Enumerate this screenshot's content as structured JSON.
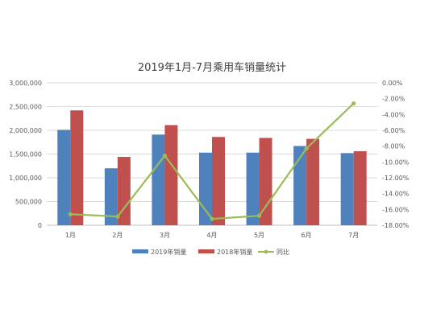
{
  "chart_data": {
    "type": "bar",
    "title": "2019年1月-7月乘用车销量统计",
    "categories": [
      "1月",
      "2月",
      "3月",
      "4月",
      "5月",
      "6月",
      "7月"
    ],
    "series": [
      {
        "name": "2019年销量",
        "type": "bar",
        "axis": "left",
        "color": "#4f81bd",
        "values": [
          2010000,
          1200000,
          1910000,
          1530000,
          1530000,
          1670000,
          1520000
        ]
      },
      {
        "name": "2018年销量",
        "type": "bar",
        "axis": "left",
        "color": "#c0504d",
        "values": [
          2420000,
          1440000,
          2110000,
          1860000,
          1840000,
          1820000,
          1560000
        ]
      },
      {
        "name": "同比",
        "type": "line",
        "axis": "right",
        "color": "#9bbb59",
        "values": [
          -16.6,
          -16.9,
          -9.2,
          -17.2,
          -16.8,
          -8.3,
          -2.6
        ]
      }
    ],
    "left_axis": {
      "min": 0,
      "max": 3000000,
      "step": 500000,
      "tick_labels": [
        "0",
        "500,000",
        "1,000,000",
        "1,500,000",
        "2,000,000",
        "2,500,000",
        "3,000,000"
      ]
    },
    "right_axis": {
      "min": -18,
      "max": 0,
      "step": 2,
      "tick_labels": [
        "0.00%",
        "-2.00%",
        "-4.00%",
        "-6.00%",
        "-8.00%",
        "-10.00%",
        "-12.00%",
        "-14.00%",
        "-16.00%",
        "-18.00%"
      ]
    },
    "grid": true,
    "legend_position": "bottom"
  }
}
